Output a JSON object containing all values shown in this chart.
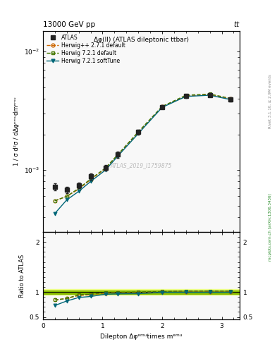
{
  "title_top": "13000 GeV pp",
  "title_right": "tt",
  "plot_title": "Δφ(ll) (ATLAS dileptonic ttbar)",
  "watermark": "ATLAS_2019_I1759875",
  "right_label": "mcplots.cern.ch [arXiv:1306.3436]",
  "rivet_label": "Rivet 3.1.10, ≥ 2.9M events",
  "xlabel": "Dilepton Δφᵉᵐᵘtimes mᵉᵐᵘ",
  "ylabel_main": "1 / σ d²σ / dΔφᵉᵐᵘdmᵉᵐᵘ",
  "ylabel_ratio": "Ratio to ATLAS",
  "x_data": [
    0.2,
    0.4,
    0.6,
    0.8,
    1.05,
    1.25,
    1.6,
    2.0,
    2.4,
    2.8,
    3.15
  ],
  "atlas_y": [
    0.00072,
    0.00068,
    0.00074,
    0.00088,
    0.00105,
    0.00135,
    0.0021,
    0.0034,
    0.0042,
    0.0043,
    0.00395
  ],
  "atlas_yerr": [
    5e-05,
    4e-05,
    4e-05,
    5e-05,
    6e-05,
    8e-05,
    0.0001,
    0.00012,
    0.00015,
    0.00015,
    0.00014
  ],
  "herwig_pp_y": [
    0.00055,
    0.0006,
    0.00069,
    0.00083,
    0.00103,
    0.00133,
    0.00208,
    0.00342,
    0.00422,
    0.00432,
    0.00398
  ],
  "herwig_721d_y": [
    0.00055,
    0.0006,
    0.0007,
    0.00084,
    0.00104,
    0.00134,
    0.0021,
    0.00344,
    0.00428,
    0.00438,
    0.00402
  ],
  "herwig_721s_y": [
    0.00043,
    0.00056,
    0.00066,
    0.0008,
    0.001,
    0.0013,
    0.00203,
    0.00338,
    0.00418,
    0.00428,
    0.00393
  ],
  "ratio_herwig_pp": [
    0.84,
    0.87,
    0.93,
    0.945,
    0.98,
    0.985,
    0.99,
    1.005,
    1.005,
    1.005,
    1.008
  ],
  "ratio_herwig_721d": [
    0.84,
    0.87,
    0.945,
    0.955,
    0.99,
    0.993,
    1.0,
    1.01,
    1.02,
    1.02,
    1.018
  ],
  "ratio_herwig_721s": [
    0.73,
    0.82,
    0.89,
    0.91,
    0.955,
    0.963,
    0.966,
    0.994,
    0.995,
    0.995,
    0.995
  ],
  "atlas_band_lo": 0.965,
  "atlas_band_hi": 1.035,
  "atlas_band_lo2": 0.94,
  "atlas_band_hi2": 1.06,
  "color_atlas": "#222222",
  "color_herwig_pp": "#cc6600",
  "color_herwig_721d": "#447700",
  "color_herwig_721s": "#006677",
  "band_color_inner": "#88bb00",
  "band_color_outer": "#eeff88",
  "xlim": [
    0.0,
    3.3
  ],
  "ylim_main": [
    0.0003,
    0.015
  ],
  "ylim_ratio": [
    0.45,
    2.2
  ],
  "bg_color": "#f8f8f8"
}
